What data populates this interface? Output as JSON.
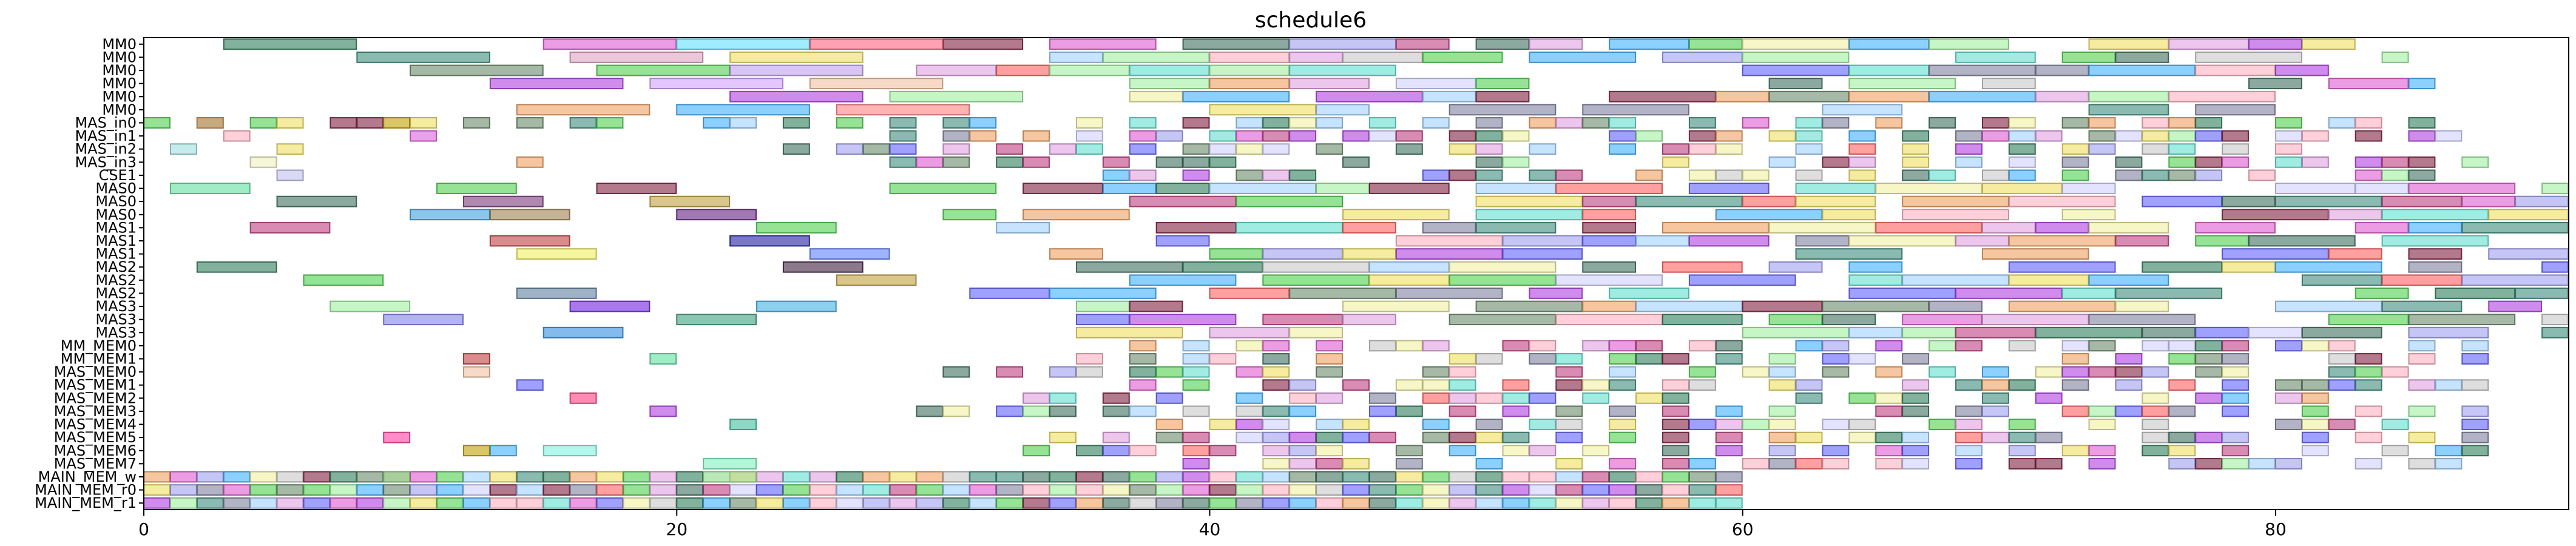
{
  "chart_data": {
    "type": "gantt",
    "title": "schedule6",
    "xlim": [
      0,
      91
    ],
    "xticks": [
      0,
      20,
      40,
      60,
      80
    ],
    "rows": [
      "MM0",
      "MM0",
      "MM0",
      "MM0",
      "MM0",
      "MM0",
      "MAS_in0",
      "MAS_in1",
      "MAS_in2",
      "MAS_in3",
      "CSE1",
      "MAS0",
      "MAS0",
      "MAS0",
      "MAS1",
      "MAS1",
      "MAS1",
      "MAS2",
      "MAS2",
      "MAS2",
      "MAS3",
      "MAS3",
      "MAS3",
      "MM_MEM0",
      "MM_MEM1",
      "MAS_MEM0",
      "MAS_MEM1",
      "MAS_MEM2",
      "MAS_MEM3",
      "MAS_MEM4",
      "MAS_MEM5",
      "MAS_MEM6",
      "MAS_MEM7",
      "MAIN_MEM_w",
      "MAIN_MEM_r0",
      "MAIN_MEM_r1"
    ],
    "palette": [
      "#2e7d5b",
      "#3c8c7c",
      "#6a8a6a",
      "#b040e0",
      "#e05ad0",
      "#ff6060",
      "#f0e060",
      "#60e0d0",
      "#6060ff",
      "#50d050",
      "#f0a060",
      "#a0d0ff",
      "#ffb0c0",
      "#a0a0f0",
      "#c8c8c8",
      "#802040",
      "#a0f0a0",
      "#407060",
      "#f0f0a0",
      "#40b0ff",
      "#c04080",
      "#d0d0ff",
      "#e0a0e0",
      "#8080a0"
    ],
    "dense": [
      {
        "row": 0,
        "start": 30,
        "end": 83
      },
      {
        "row": 1,
        "start": 34,
        "end": 85
      },
      {
        "row": 2,
        "start": 29,
        "end": 82
      },
      {
        "row": 3,
        "start": 35,
        "end": 86
      },
      {
        "row": 4,
        "start": 37,
        "end": 80
      },
      {
        "row": 5,
        "start": 40,
        "end": 81
      },
      {
        "row": 6,
        "start": 0,
        "end": 88
      },
      {
        "row": 7,
        "start": 28,
        "end": 88
      },
      {
        "row": 8,
        "start": 24,
        "end": 87
      },
      {
        "row": 9,
        "start": 28,
        "end": 88
      },
      {
        "row": 10,
        "start": 36,
        "end": 87
      },
      {
        "row": 11,
        "start": 28,
        "end": 91
      },
      {
        "row": 12,
        "start": 35,
        "end": 91
      },
      {
        "row": 13,
        "start": 30,
        "end": 91
      },
      {
        "row": 14,
        "start": 32,
        "end": 91
      },
      {
        "row": 15,
        "start": 36,
        "end": 91
      },
      {
        "row": 16,
        "start": 34,
        "end": 91
      },
      {
        "row": 17,
        "start": 35,
        "end": 91
      },
      {
        "row": 18,
        "start": 37,
        "end": 91
      },
      {
        "row": 19,
        "start": 31,
        "end": 91
      },
      {
        "row": 20,
        "start": 33,
        "end": 91
      },
      {
        "row": 21,
        "start": 31,
        "end": 91
      },
      {
        "row": 22,
        "start": 35,
        "end": 91
      },
      {
        "row": 23,
        "start": 36,
        "end": 88
      },
      {
        "row": 24,
        "start": 35,
        "end": 88
      },
      {
        "row": 25,
        "start": 30,
        "end": 88
      },
      {
        "row": 26,
        "start": 37,
        "end": 88
      },
      {
        "row": 27,
        "start": 33,
        "end": 88
      },
      {
        "row": 28,
        "start": 29,
        "end": 88
      },
      {
        "row": 29,
        "start": 38,
        "end": 88
      },
      {
        "row": 30,
        "start": 34,
        "end": 88
      },
      {
        "row": 31,
        "start": 33,
        "end": 88
      },
      {
        "row": 32,
        "start": 39,
        "end": 88
      },
      {
        "row": 33,
        "start": 0,
        "end": 60
      },
      {
        "row": 34,
        "start": 0,
        "end": 60
      },
      {
        "row": 35,
        "start": 0,
        "end": 60
      }
    ],
    "tasks": [
      {
        "row": 0,
        "start": 3,
        "end": 8,
        "color": "#2e7d5b"
      },
      {
        "row": 0,
        "start": 15,
        "end": 20,
        "color": "#e05ad0"
      },
      {
        "row": 0,
        "start": 20,
        "end": 25,
        "color": "#60e0ff"
      },
      {
        "row": 0,
        "start": 25,
        "end": 30,
        "color": "#ff6080"
      },
      {
        "row": 1,
        "start": 8,
        "end": 13,
        "color": "#3c8c7c"
      },
      {
        "row": 1,
        "start": 16,
        "end": 21,
        "color": "#e0a0c0"
      },
      {
        "row": 1,
        "start": 22,
        "end": 27,
        "color": "#f0e060"
      },
      {
        "row": 2,
        "start": 10,
        "end": 15,
        "color": "#6a8a6a"
      },
      {
        "row": 2,
        "start": 17,
        "end": 22,
        "color": "#50d050"
      },
      {
        "row": 2,
        "start": 22,
        "end": 27,
        "color": "#c0a0f0"
      },
      {
        "row": 3,
        "start": 13,
        "end": 18,
        "color": "#b040e0"
      },
      {
        "row": 3,
        "start": 19,
        "end": 24,
        "color": "#d0a0ff"
      },
      {
        "row": 3,
        "start": 25,
        "end": 30,
        "color": "#f0c0a0"
      },
      {
        "row": 4,
        "start": 22,
        "end": 27,
        "color": "#b040e0"
      },
      {
        "row": 4,
        "start": 28,
        "end": 33,
        "color": "#a0f0a0"
      },
      {
        "row": 5,
        "start": 14,
        "end": 19,
        "color": "#f0a060"
      },
      {
        "row": 5,
        "start": 20,
        "end": 25,
        "color": "#40b0ff"
      },
      {
        "row": 5,
        "start": 26,
        "end": 31,
        "color": "#ff8080"
      },
      {
        "row": 11,
        "start": 1,
        "end": 4,
        "color": "#60e0a0"
      },
      {
        "row": 11,
        "start": 11,
        "end": 14,
        "color": "#50d050"
      },
      {
        "row": 11,
        "start": 17,
        "end": 20,
        "color": "#802040"
      },
      {
        "row": 12,
        "start": 5,
        "end": 8,
        "color": "#407060"
      },
      {
        "row": 12,
        "start": 12,
        "end": 15,
        "color": "#7a3a7a"
      },
      {
        "row": 12,
        "start": 19,
        "end": 22,
        "color": "#c0a040"
      },
      {
        "row": 13,
        "start": 10,
        "end": 13,
        "color": "#40a0e0"
      },
      {
        "row": 13,
        "start": 13,
        "end": 16,
        "color": "#a08050"
      },
      {
        "row": 13,
        "start": 20,
        "end": 23,
        "color": "#602080"
      },
      {
        "row": 14,
        "start": 4,
        "end": 7,
        "color": "#c04080"
      },
      {
        "row": 14,
        "start": 23,
        "end": 26,
        "color": "#50d050"
      },
      {
        "row": 15,
        "start": 13,
        "end": 16,
        "color": "#c04040"
      },
      {
        "row": 15,
        "start": 22,
        "end": 25,
        "color": "#2020a0"
      },
      {
        "row": 16,
        "start": 14,
        "end": 17,
        "color": "#f0f060"
      },
      {
        "row": 16,
        "start": 25,
        "end": 28,
        "color": "#6080ff"
      },
      {
        "row": 17,
        "start": 2,
        "end": 5,
        "color": "#2e7d5b"
      },
      {
        "row": 17,
        "start": 24,
        "end": 27,
        "color": "#402040"
      },
      {
        "row": 18,
        "start": 6,
        "end": 9,
        "color": "#50d050"
      },
      {
        "row": 18,
        "start": 26,
        "end": 29,
        "color": "#c0a040"
      },
      {
        "row": 19,
        "start": 14,
        "end": 17,
        "color": "#6080a0"
      },
      {
        "row": 20,
        "start": 7,
        "end": 10,
        "color": "#a0f0a0"
      },
      {
        "row": 20,
        "start": 16,
        "end": 19,
        "color": "#7020e0"
      },
      {
        "row": 20,
        "start": 23,
        "end": 26,
        "color": "#40b0e0"
      },
      {
        "row": 21,
        "start": 9,
        "end": 12,
        "color": "#8080f0"
      },
      {
        "row": 21,
        "start": 20,
        "end": 23,
        "color": "#40a080"
      },
      {
        "row": 22,
        "start": 15,
        "end": 18,
        "color": "#3090e0"
      },
      {
        "row": 6,
        "start": 2,
        "end": 3,
        "color": "#f0a060"
      },
      {
        "row": 6,
        "start": 7,
        "end": 8,
        "color": "#802040"
      },
      {
        "row": 6,
        "start": 9,
        "end": 10,
        "color": "#c0a000"
      },
      {
        "row": 7,
        "start": 3,
        "end": 4,
        "color": "#ffb0c0"
      },
      {
        "row": 7,
        "start": 10,
        "end": 11,
        "color": "#e060e0"
      },
      {
        "row": 8,
        "start": 1,
        "end": 2,
        "color": "#a0e0e0"
      },
      {
        "row": 8,
        "start": 5,
        "end": 6,
        "color": "#f0e060"
      },
      {
        "row": 9,
        "start": 4,
        "end": 5,
        "color": "#f0f0c0"
      },
      {
        "row": 9,
        "start": 14,
        "end": 15,
        "color": "#f0a060"
      },
      {
        "row": 10,
        "start": 5,
        "end": 6,
        "color": "#c0c0f0"
      },
      {
        "row": 24,
        "start": 12,
        "end": 13,
        "color": "#c04040"
      },
      {
        "row": 24,
        "start": 19,
        "end": 20,
        "color": "#60e0a0"
      },
      {
        "row": 25,
        "start": 12,
        "end": 13,
        "color": "#f0c0a0"
      },
      {
        "row": 26,
        "start": 14,
        "end": 15,
        "color": "#6060ff"
      },
      {
        "row": 27,
        "start": 16,
        "end": 17,
        "color": "#ff4080"
      },
      {
        "row": 28,
        "start": 19,
        "end": 20,
        "color": "#b040e0"
      },
      {
        "row": 29,
        "start": 22,
        "end": 23,
        "color": "#40c0a0"
      },
      {
        "row": 30,
        "start": 9,
        "end": 10,
        "color": "#ff40a0"
      },
      {
        "row": 31,
        "start": 12,
        "end": 13,
        "color": "#c0a000"
      },
      {
        "row": 31,
        "start": 13,
        "end": 14,
        "color": "#40b0ff"
      },
      {
        "row": 31,
        "start": 15,
        "end": 17,
        "color": "#80f0e0"
      },
      {
        "row": 32,
        "start": 21,
        "end": 23,
        "color": "#80f0c0"
      },
      {
        "row": 33,
        "start": 9,
        "end": 10,
        "color": "#a0e080"
      },
      {
        "row": 33,
        "start": 21,
        "end": 23,
        "color": "#a0f0a0"
      }
    ]
  }
}
